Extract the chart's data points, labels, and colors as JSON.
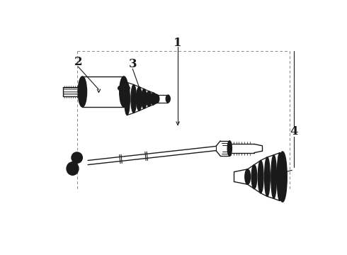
{
  "background_color": "#ffffff",
  "line_color": "#1a1a1a",
  "dashed_color": "#888888",
  "fig_width": 4.9,
  "fig_height": 3.6,
  "dpi": 100,
  "label_fontsize": 11
}
